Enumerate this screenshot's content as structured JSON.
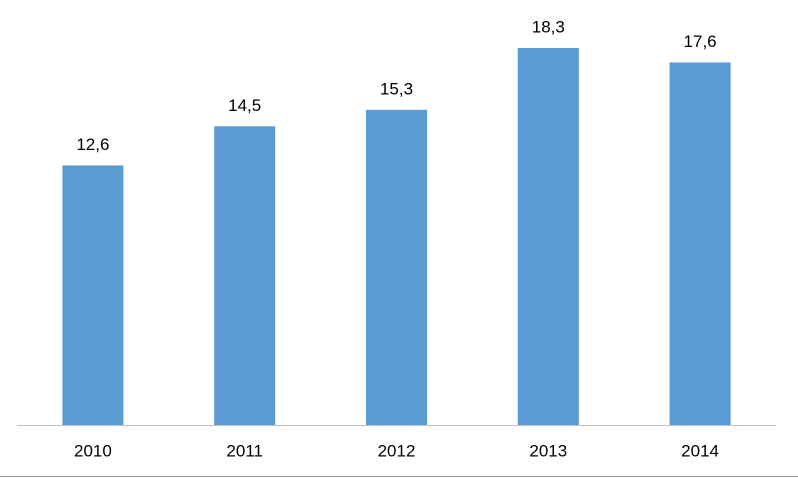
{
  "chart_data": {
    "type": "bar",
    "categories": [
      "2010",
      "2011",
      "2012",
      "2013",
      "2014"
    ],
    "values": [
      12.6,
      14.5,
      15.3,
      18.3,
      17.6
    ],
    "value_labels": [
      "12,6",
      "14,5",
      "15,3",
      "18,3",
      "17,6"
    ],
    "color": "#5b9bd5"
  }
}
